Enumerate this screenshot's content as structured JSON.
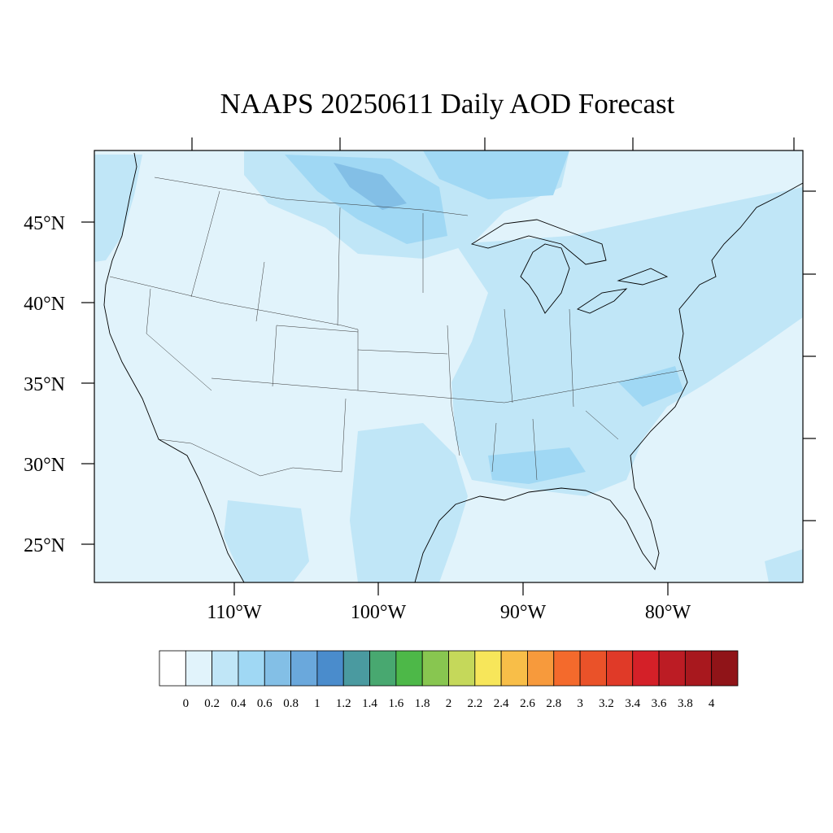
{
  "title": "NAAPS 20250611 Daily AOD Forecast",
  "map": {
    "region": "Contiguous United States",
    "lat_labels": [
      "45°N",
      "40°N",
      "35°N",
      "30°N",
      "25°N"
    ],
    "lat_values": [
      45,
      40,
      35,
      30,
      25
    ],
    "lon_labels": [
      "110°W",
      "100°W",
      "90°W",
      "80°W"
    ],
    "lon_values": [
      -110,
      -100,
      -90,
      -80
    ]
  },
  "colorbar": {
    "labels": [
      "0",
      "0.2",
      "0.4",
      "0.6",
      "0.8",
      "1",
      "1.2",
      "1.4",
      "1.6",
      "1.8",
      "2",
      "2.2",
      "2.4",
      "2.6",
      "2.8",
      "3",
      "3.2",
      "3.4",
      "3.6",
      "3.8",
      "4"
    ],
    "colors": [
      "#ffffff",
      "#e1f3fb",
      "#c0e6f7",
      "#a0d8f4",
      "#83bfe6",
      "#6aa8dc",
      "#4a8ccc",
      "#4a9aa0",
      "#48a870",
      "#4db848",
      "#88c650",
      "#c5d85a",
      "#f7e65a",
      "#f8be48",
      "#f79a3c",
      "#f46a2c",
      "#ea5229",
      "#e03a28",
      "#d42028",
      "#bc1c24",
      "#a8181e",
      "#901418"
    ]
  }
}
